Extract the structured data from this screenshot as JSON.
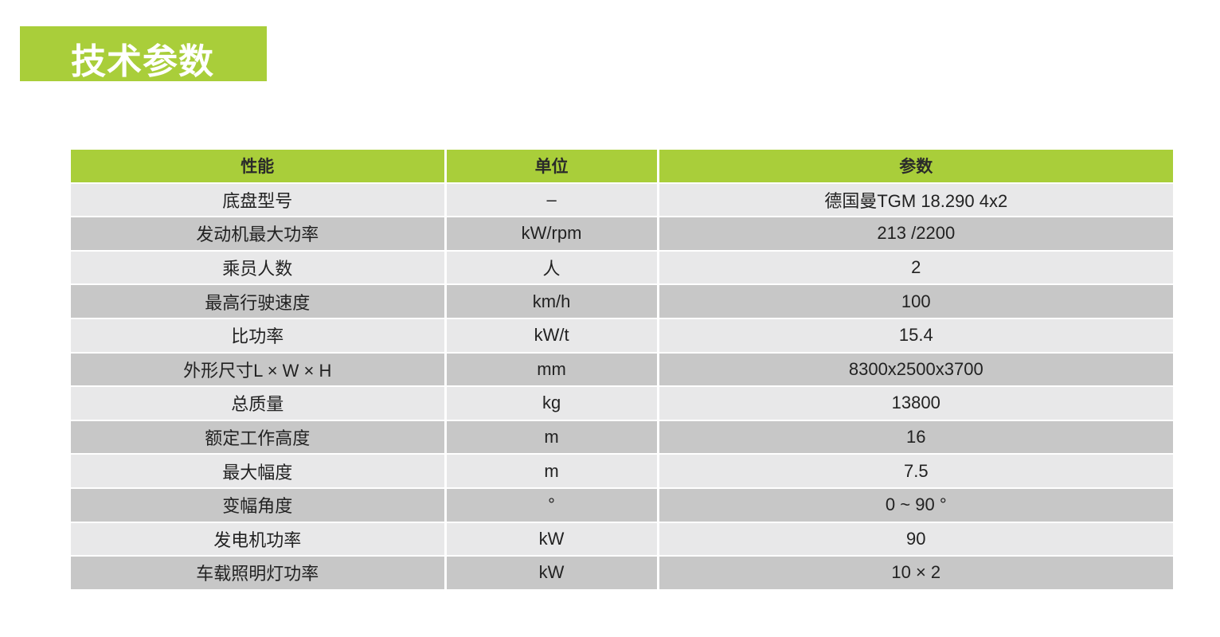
{
  "title": "技术参数",
  "colors": {
    "accent": "#a9ce3a",
    "row_light": "#e8e8e9",
    "row_dark": "#c7c7c7"
  },
  "table": {
    "headers": [
      "性能",
      "单位",
      "参数"
    ],
    "rows": [
      [
        "底盘型号",
        "–",
        "德国曼TGM 18.290 4x2"
      ],
      [
        "发动机最大功率",
        "kW/rpm",
        "213 /2200"
      ],
      [
        "乘员人数",
        "人",
        "2"
      ],
      [
        "最高行驶速度",
        "km/h",
        "100"
      ],
      [
        "比功率",
        "kW/t",
        "15.4"
      ],
      [
        "外形尺寸L × W × H",
        "mm",
        "8300x2500x3700"
      ],
      [
        "总质量",
        "kg",
        "13800"
      ],
      [
        "额定工作高度",
        "m",
        "16"
      ],
      [
        "最大幅度",
        "m",
        "7.5"
      ],
      [
        "变幅角度",
        "°",
        "0 ~ 90 °"
      ],
      [
        "发电机功率",
        "kW",
        "90"
      ],
      [
        "车载照明灯功率",
        "kW",
        "10 × 2"
      ]
    ]
  }
}
